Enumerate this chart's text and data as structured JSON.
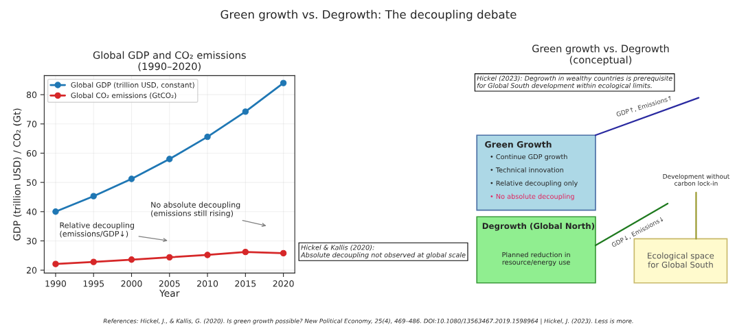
{
  "chart_data": [
    {
      "type": "line",
      "title": "Global GDP and CO₂ emissions\n(1990–2020)",
      "xlabel": "Year",
      "ylabel": "GDP (trillion USD) / CO₂ (Gt)",
      "x": [
        1990,
        1995,
        2000,
        2005,
        2010,
        2015,
        2020
      ],
      "series": [
        {
          "name": "Global GDP (trillion USD, constant)",
          "color": "#1f77b4",
          "values": [
            40,
            45.3,
            51.2,
            58,
            65.6,
            74.2,
            84
          ]
        },
        {
          "name": "Global CO₂ emissions (GtCO₂)",
          "color": "#d62728",
          "values": [
            22.1,
            22.8,
            23.6,
            24.4,
            25.2,
            26.2,
            25.8
          ]
        }
      ],
      "xlim": [
        1988.5,
        2021.5
      ],
      "ylim": [
        19,
        86.5
      ],
      "xticks": [
        1990,
        1995,
        2000,
        2005,
        2010,
        2015,
        2020
      ],
      "yticks": [
        20,
        30,
        40,
        50,
        60,
        70,
        80
      ],
      "grid": true,
      "legend": "top left",
      "marker": "circle",
      "line_style": "solid",
      "annotations": [
        "Green growth vs. Degrowth: The decoupling debate",
        "Relative decoupling\n(emissions/GDP↓)",
        "No absolute decoupling\n(emissions still rising)",
        "Hickel & Kallis (2020):\nAbsolute decoupling not observed at global scale",
        "References: Hickel, J., & Kallis, G. (2020). Is green growth possible? New Political Economy, 25(4), 469–486. DOI:10.1080/13563467.2019.1598964 | Hickel, J. (2023). Less is more."
      ]
    },
    {
      "type": "other",
      "title": "Green growth vs. Degrowth\n(conceptual)",
      "annotations": [
        "Hickel (2023): Degrowth in wealthy countries is prerequisite\nfor Global South development within ecological limits.",
        "GDP↑, Emissions↑",
        "Green Growth",
        "• Continue GDP growth",
        "• Technical innovation",
        "• Relative decoupling only",
        "• No absolute decoupling",
        "Degrowth (Global North)",
        "Planned reduction in\nresource/energy use",
        "GDP↓, Emissions↓",
        "Development without\ncarbon lock-in",
        "Ecological space\nfor Global South"
      ]
    }
  ]
}
